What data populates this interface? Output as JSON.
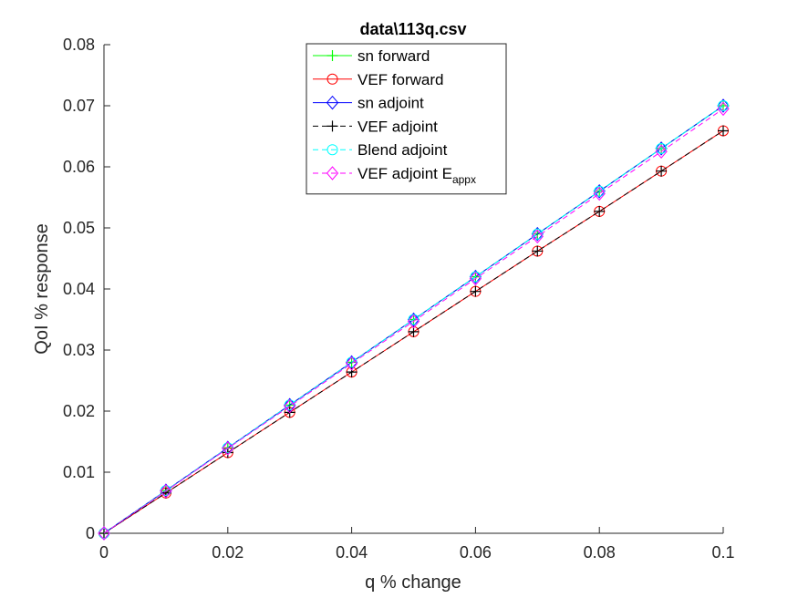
{
  "chart_data": {
    "type": "line",
    "title": "data\\113q.csv",
    "xlabel": "q % change",
    "ylabel": "QoI % response",
    "xlim": [
      0,
      0.1
    ],
    "ylim": [
      0,
      0.08
    ],
    "xticks": [
      0,
      0.02,
      0.04,
      0.06,
      0.08,
      0.1
    ],
    "xtick_labels": [
      "0",
      "0.02",
      "0.04",
      "0.06",
      "0.08",
      "0.1"
    ],
    "yticks": [
      0,
      0.01,
      0.02,
      0.03,
      0.04,
      0.05,
      0.06,
      0.07,
      0.08
    ],
    "ytick_labels": [
      "0",
      "0.01",
      "0.02",
      "0.03",
      "0.04",
      "0.05",
      "0.06",
      "0.07",
      "0.08"
    ],
    "grid": false,
    "legend_position": "top-center",
    "x": [
      0,
      0.01,
      0.02,
      0.03,
      0.04,
      0.05,
      0.06,
      0.07,
      0.08,
      0.09,
      0.1
    ],
    "series": [
      {
        "name": "sn forward",
        "color": "#00ff00",
        "dash": "solid",
        "marker": "plus",
        "values": [
          0,
          0.007,
          0.014,
          0.021,
          0.028,
          0.035,
          0.042,
          0.049,
          0.056,
          0.063,
          0.07
        ]
      },
      {
        "name": "VEF forward",
        "color": "#ff0000",
        "dash": "solid",
        "marker": "circle",
        "values": [
          0,
          0.0066,
          0.0132,
          0.0198,
          0.0264,
          0.033,
          0.0396,
          0.0462,
          0.0527,
          0.0593,
          0.0659
        ]
      },
      {
        "name": "sn adjoint",
        "color": "#0000ff",
        "dash": "solid",
        "marker": "diamond",
        "values": [
          0,
          0.007,
          0.014,
          0.021,
          0.028,
          0.035,
          0.042,
          0.049,
          0.056,
          0.063,
          0.07
        ]
      },
      {
        "name": "VEF adjoint",
        "color": "#000000",
        "dash": "dashed",
        "marker": "plus",
        "values": [
          0,
          0.0066,
          0.0132,
          0.0198,
          0.0264,
          0.033,
          0.0396,
          0.0462,
          0.0527,
          0.0593,
          0.0659
        ]
      },
      {
        "name": "Blend adjoint",
        "color": "#00ffff",
        "dash": "dashed",
        "marker": "circle",
        "values": [
          0,
          0.007,
          0.014,
          0.021,
          0.028,
          0.035,
          0.042,
          0.049,
          0.056,
          0.063,
          0.07
        ]
      },
      {
        "name": "VEF adjoint E",
        "name_subscript": "appx",
        "color": "#ff00ff",
        "dash": "dashed",
        "marker": "diamond",
        "values": [
          0,
          0.0069,
          0.0139,
          0.0208,
          0.0278,
          0.0347,
          0.0417,
          0.0486,
          0.0556,
          0.0625,
          0.0695
        ]
      }
    ]
  }
}
